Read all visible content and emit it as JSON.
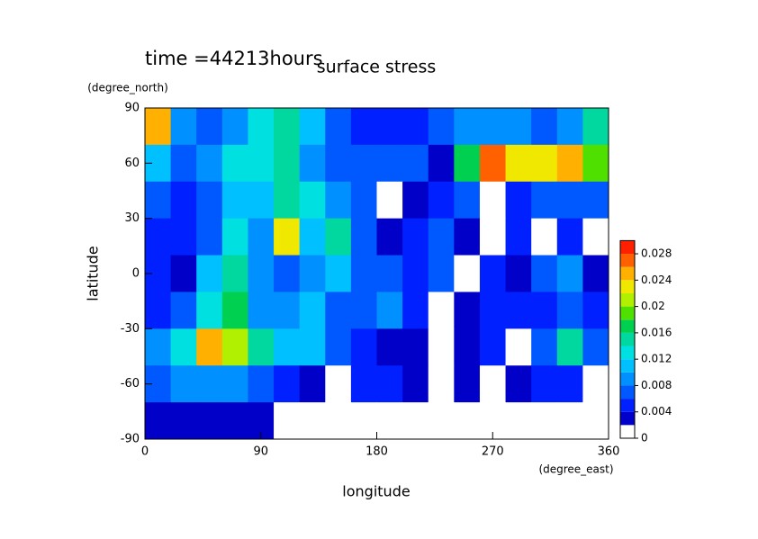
{
  "chart_data": {
    "type": "contour",
    "time_label": "time =44213hours",
    "title": "surface stress",
    "x_label": "longitude",
    "x_unit": "(degree_east)",
    "y_label": "latitude",
    "y_unit": "(degree_north)",
    "xlim": [
      0,
      360
    ],
    "xticks": [
      0,
      90,
      180,
      270,
      360
    ],
    "ylim": [
      -90,
      90
    ],
    "yticks": [
      -90,
      -60,
      -30,
      0,
      30,
      60,
      90
    ],
    "x": [
      10,
      30,
      50,
      70,
      90,
      110,
      130,
      150,
      170,
      190,
      210,
      230,
      250,
      270,
      290,
      310,
      330,
      350
    ],
    "y": [
      80,
      60,
      40,
      20,
      0,
      -20,
      -40,
      -60,
      -80
    ],
    "z": [
      [
        0.024,
        0.008,
        0.006,
        0.008,
        0.012,
        0.014,
        0.01,
        0.006,
        0.004,
        0.004,
        0.004,
        0.006,
        0.008,
        0.008,
        0.008,
        0.006,
        0.008,
        0.014
      ],
      [
        0.01,
        0.006,
        0.008,
        0.012,
        0.012,
        0.014,
        0.008,
        0.006,
        0.006,
        0.006,
        0.006,
        0.002,
        0.016,
        0.026,
        0.022,
        0.022,
        0.024,
        0.018
      ],
      [
        0.006,
        0.004,
        0.006,
        0.01,
        0.01,
        0.014,
        0.012,
        0.008,
        0.006,
        0,
        0.002,
        0.004,
        0.006,
        0,
        0.004,
        0.006,
        0.006,
        0.006
      ],
      [
        0.004,
        0.004,
        0.006,
        0.012,
        0.008,
        0.022,
        0.01,
        0.014,
        0.006,
        0.002,
        0.004,
        0.006,
        0.002,
        0,
        0.004,
        0,
        0.004,
        0
      ],
      [
        0.004,
        0.002,
        0.01,
        0.014,
        0.008,
        0.006,
        0.008,
        0.01,
        0.006,
        0.006,
        0.004,
        0.006,
        0,
        0.004,
        0.002,
        0.006,
        0.008,
        0.002
      ],
      [
        0.004,
        0.006,
        0.012,
        0.016,
        0.008,
        0.008,
        0.01,
        0.006,
        0.006,
        0.008,
        0.004,
        0,
        0.002,
        0.004,
        0.004,
        0.004,
        0.006,
        0.004
      ],
      [
        0.008,
        0.012,
        0.024,
        0.02,
        0.014,
        0.01,
        0.01,
        0.006,
        0.004,
        0.002,
        0.002,
        0,
        0.002,
        0.004,
        0,
        0.006,
        0.014,
        0.006
      ],
      [
        0.006,
        0.008,
        0.008,
        0.008,
        0.006,
        0.004,
        0.002,
        0,
        0.004,
        0.004,
        0.002,
        0,
        0.002,
        0,
        0.002,
        0.004,
        0.004,
        0
      ],
      [
        0.002,
        0.002,
        0.002,
        0.002,
        0.002,
        0,
        0,
        0,
        0,
        0,
        0,
        0,
        0,
        0,
        0,
        0,
        0,
        0
      ]
    ],
    "levels": [
      0,
      0.002,
      0.004,
      0.006,
      0.008,
      0.01,
      0.012,
      0.014,
      0.016,
      0.018,
      0.02,
      0.022,
      0.024,
      0.026,
      0.028,
      0.03
    ],
    "colors": [
      "#ffffff",
      "#0000c8",
      "#0020ff",
      "#0058ff",
      "#0090ff",
      "#00c0ff",
      "#00e0e0",
      "#00d8a0",
      "#00d050",
      "#50e000",
      "#b0f000",
      "#f0e800",
      "#ffb000",
      "#ff6000",
      "#ff2000"
    ],
    "colorbar_ticks": [
      0,
      0.004,
      0.008,
      0.012,
      0.016,
      0.02,
      0.024,
      0.028
    ]
  }
}
